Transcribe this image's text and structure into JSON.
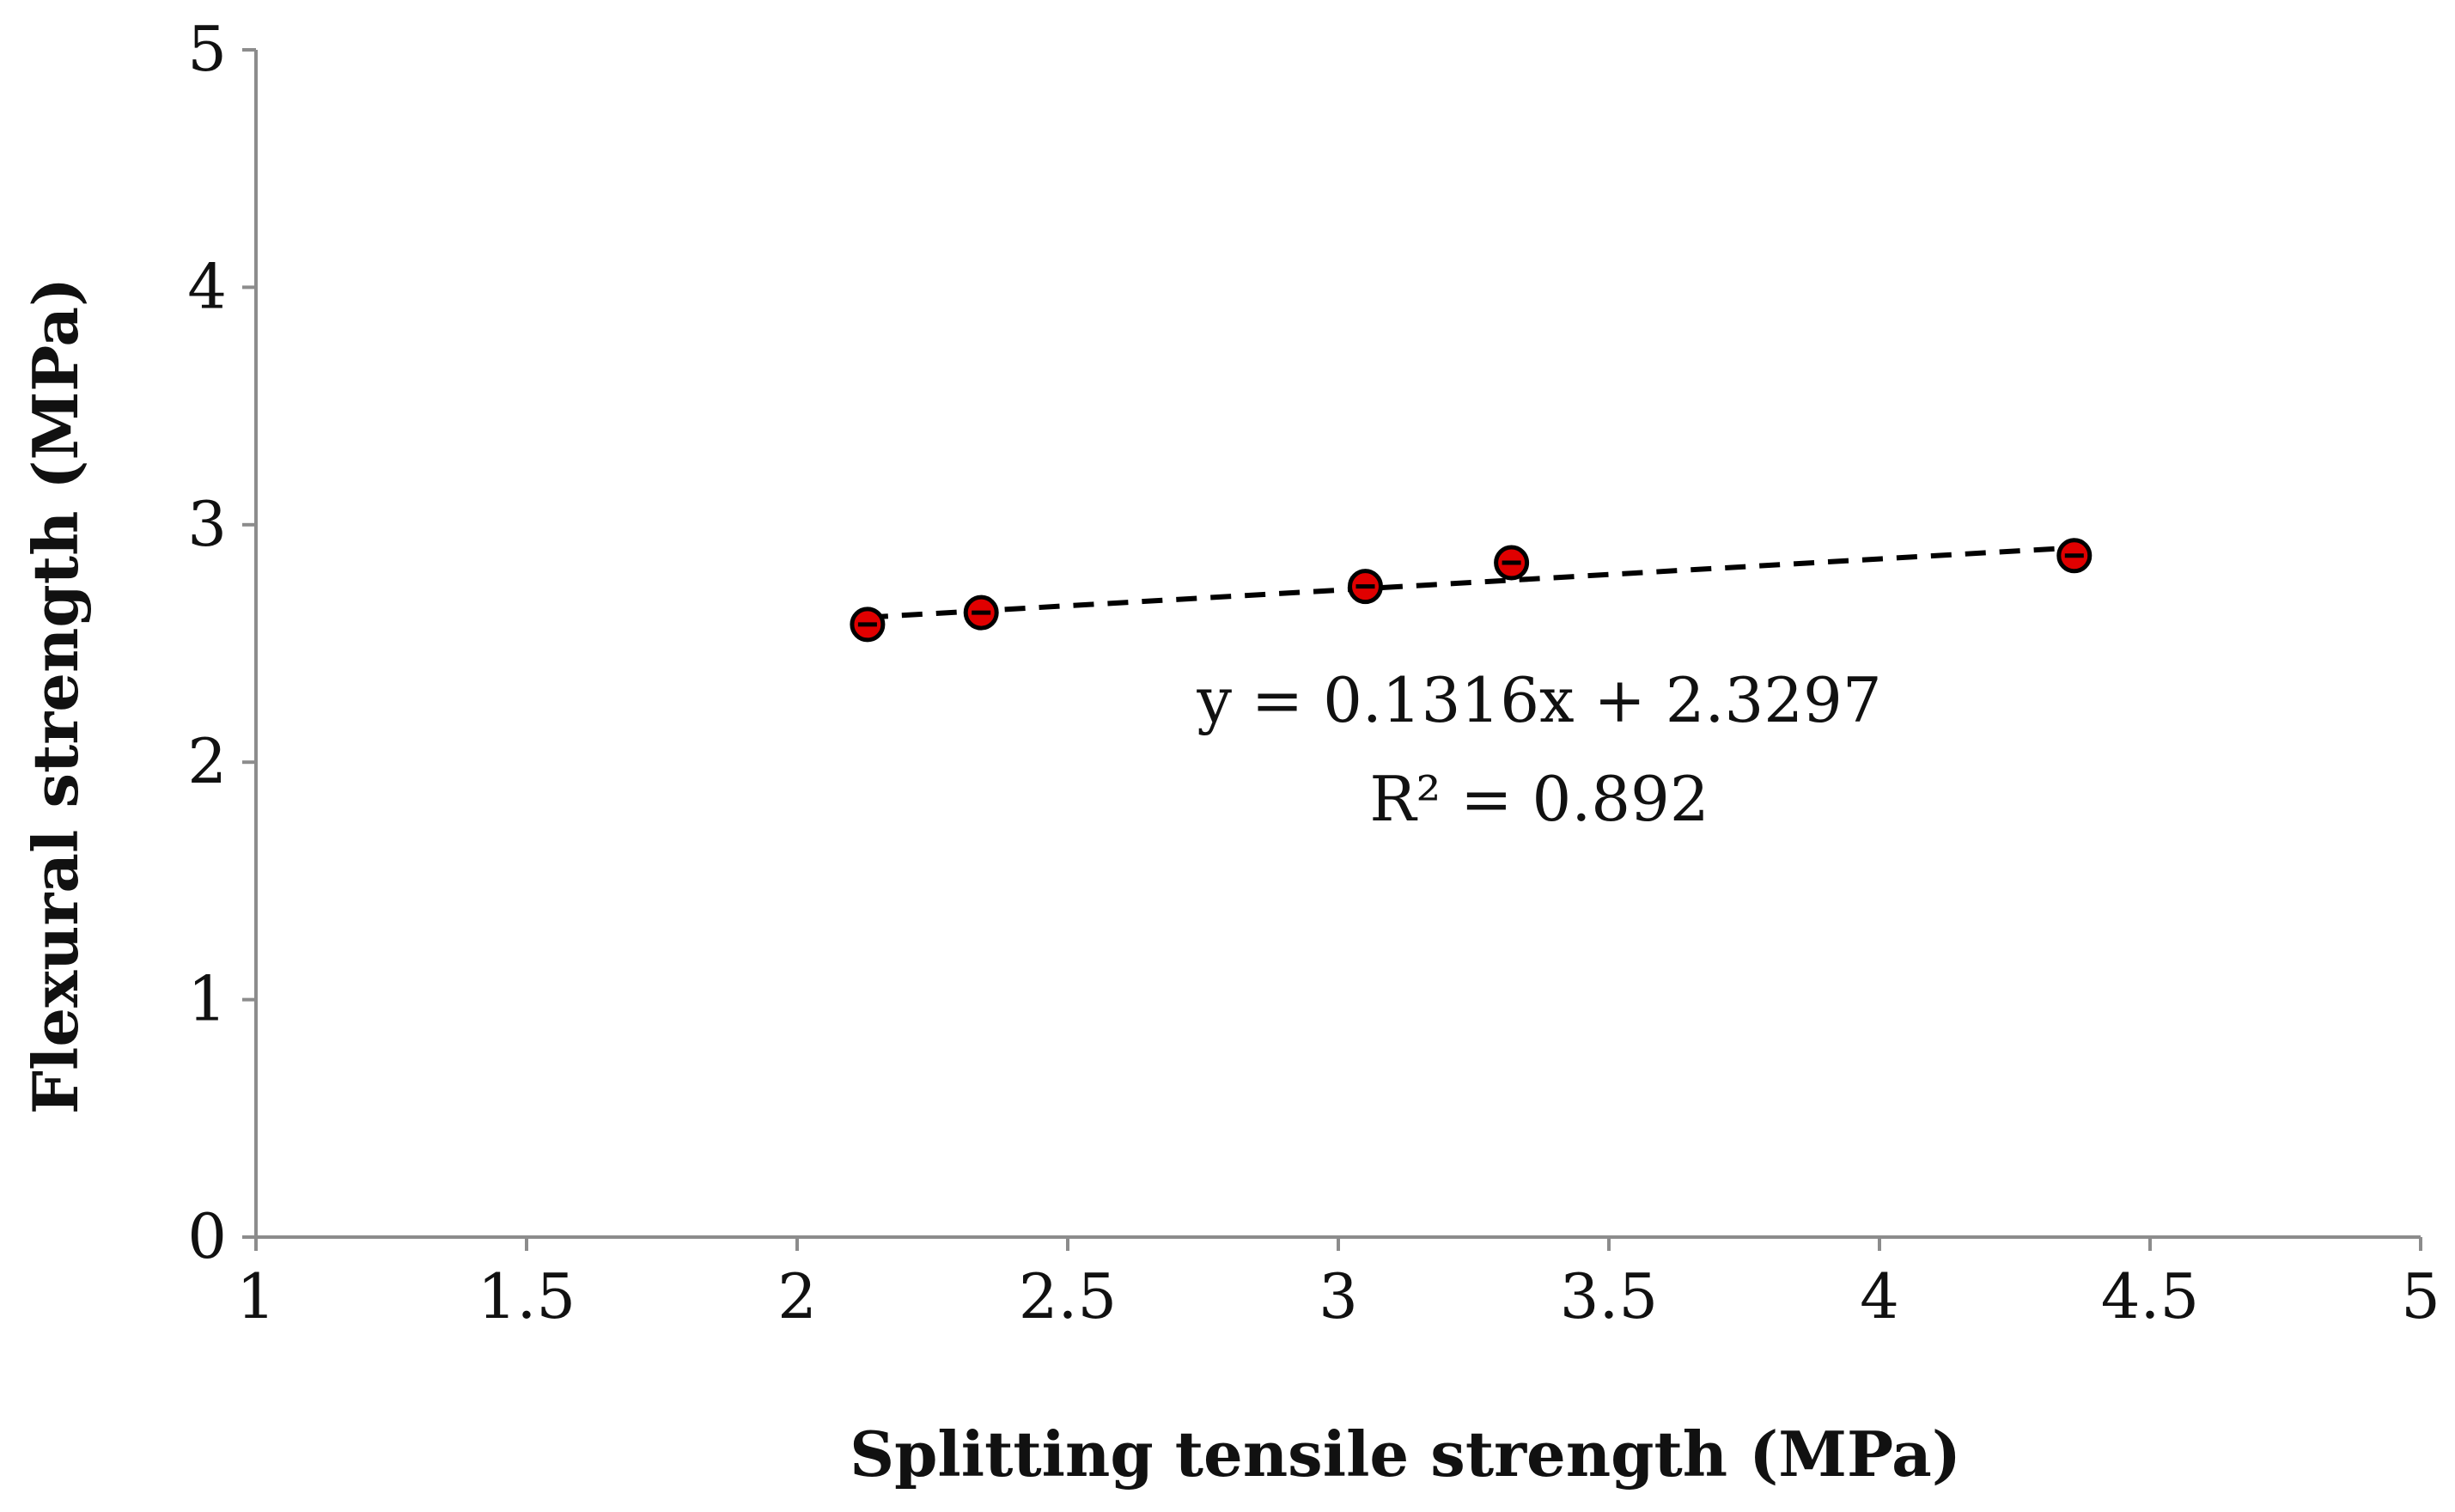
{
  "chart_data": {
    "type": "scatter",
    "title": "",
    "xlabel": "Splitting tensile strength (MPa)",
    "ylabel": "Flexural strength (MPa)",
    "xlim": [
      1,
      5
    ],
    "ylim": [
      0,
      5
    ],
    "x_ticks": [
      "1",
      "1.5",
      "2",
      "2.5",
      "3",
      "3.5",
      "4",
      "4.5",
      "5"
    ],
    "y_ticks": [
      "0",
      "1",
      "2",
      "3",
      "4",
      "5"
    ],
    "grid": false,
    "legend": "none",
    "series": [
      {
        "points": [
          {
            "x": 2.13,
            "y": 2.58
          },
          {
            "x": 2.34,
            "y": 2.63
          },
          {
            "x": 3.05,
            "y": 2.74
          },
          {
            "x": 3.32,
            "y": 2.84
          },
          {
            "x": 4.36,
            "y": 2.87
          }
        ],
        "marker_color": "#e00000",
        "marker_edge_color": "#000000"
      }
    ],
    "trendline": {
      "slope": 0.1316,
      "intercept": 2.3297,
      "style": "dashed",
      "color": "#000000",
      "x_range": [
        2.13,
        4.36
      ]
    },
    "annotations": {
      "equation": "y = 0.1316x + 2.3297",
      "r_squared": "R² = 0.892"
    }
  }
}
